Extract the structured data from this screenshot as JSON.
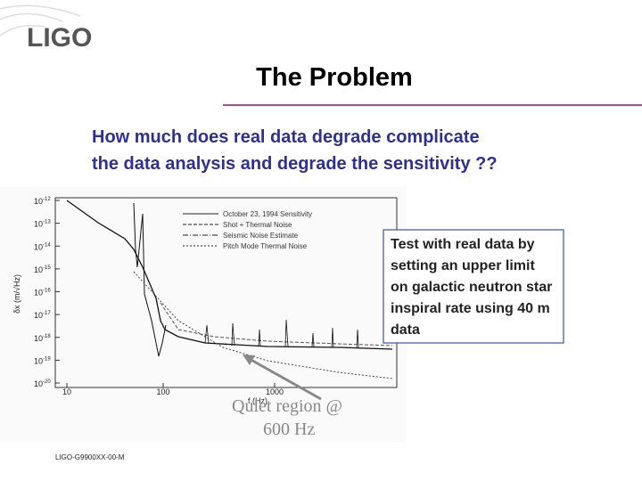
{
  "header": {
    "logo": "LIGO",
    "title": "The Problem"
  },
  "question": [
    "How much does real data degrade complicate",
    "the data analysis and degrade the sensitivity ??"
  ],
  "figure": {
    "y_ticks": [
      {
        "base": "10",
        "exp": "-12"
      },
      {
        "base": "10",
        "exp": "-13"
      },
      {
        "base": "10",
        "exp": "-14"
      },
      {
        "base": "10",
        "exp": "-15"
      },
      {
        "base": "10",
        "exp": "-16"
      },
      {
        "base": "10",
        "exp": "-17"
      },
      {
        "base": "10",
        "exp": "-18"
      },
      {
        "base": "10",
        "exp": "-19"
      },
      {
        "base": "10",
        "exp": "-20"
      }
    ],
    "x_ticks": [
      "10",
      "100",
      "1000"
    ],
    "x_label": "f (Hz)",
    "y_label": "δx (m/√Hz)",
    "legend": [
      "October 23, 1994 Sensitivity",
      "Shot + Thermal Noise",
      "Seismic Noise Estimate",
      "Pitch Mode Thermal Noise"
    ],
    "annotation": [
      "Quiet region @",
      "600 Hz"
    ]
  },
  "callout": [
    "Test with real data by",
    "setting an upper limit",
    "on galactic neutron star",
    "inspiral rate using 40 m",
    "data"
  ],
  "footer": "LIGO-G9900XX-00-M"
}
